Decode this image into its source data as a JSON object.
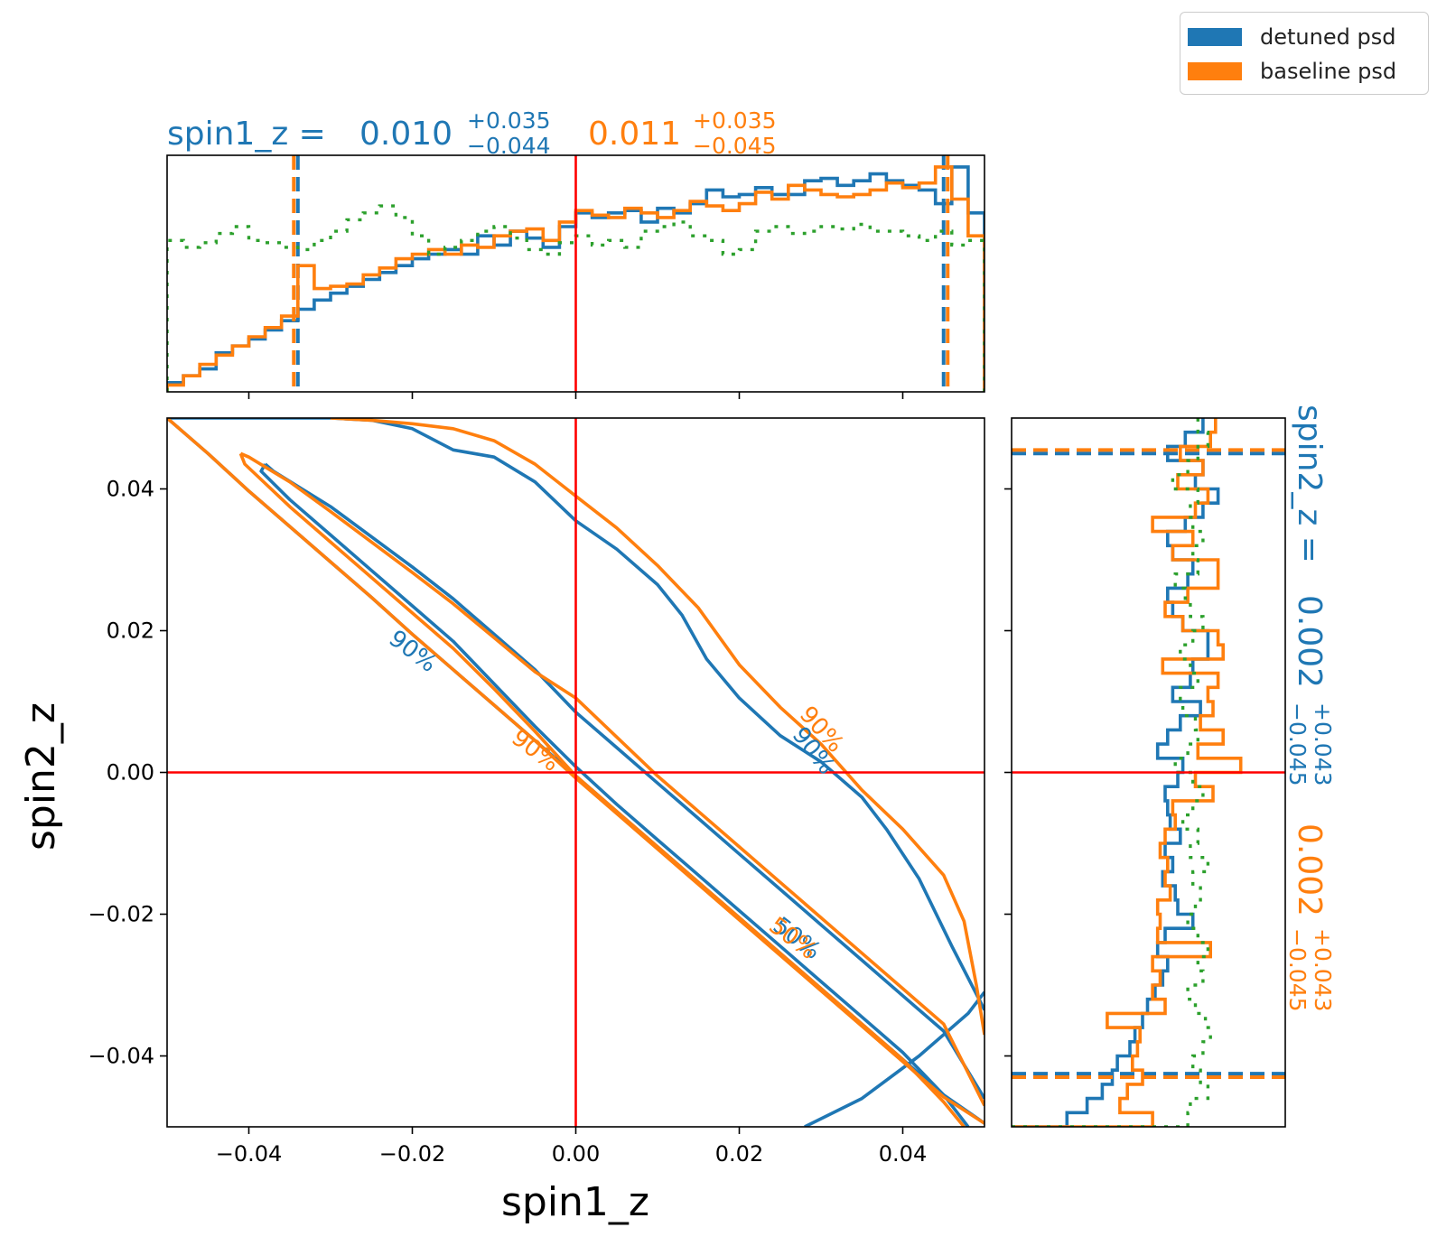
{
  "colors": {
    "series_a": "#1f77b4",
    "series_b": "#ff7f0e",
    "prior": "#2ca02c",
    "truth": "#ff0000"
  },
  "legend": {
    "items": [
      {
        "label": "detuned psd",
        "color": "#1f77b4"
      },
      {
        "label": "baseline psd",
        "color": "#ff7f0e"
      }
    ],
    "placement": "top-right"
  },
  "top_title": {
    "prefix": "spin1_z = ",
    "a_value": "0.010",
    "a_plus": "+0.035",
    "a_minus": "−0.044",
    "b_value": "0.011",
    "b_plus": "+0.035",
    "b_minus": "−0.045"
  },
  "right_title": {
    "prefix": "spin2_z = ",
    "a_value": "0.002",
    "a_plus": "+0.043",
    "a_minus": "−0.045",
    "b_value": "0.002",
    "b_plus": "+0.043",
    "b_minus": "−0.045"
  },
  "chart_data": {
    "type": "corner",
    "xlabel": "spin1_z",
    "ylabel": "spin2_z",
    "xlim": [
      -0.05,
      0.05
    ],
    "ylim": [
      -0.05,
      0.05
    ],
    "x_ticks": [
      "−0.04",
      "−0.02",
      "0.00",
      "0.02",
      "0.04"
    ],
    "x_tick_values": [
      -0.04,
      -0.02,
      0.0,
      0.02,
      0.04
    ],
    "y_ticks": [
      "0.04",
      "0.02",
      "0.00",
      "−0.02",
      "−0.04"
    ],
    "y_tick_values": [
      0.04,
      0.02,
      0.0,
      -0.02,
      -0.04
    ],
    "truth": {
      "x": 0.0,
      "y": 0.0
    },
    "contour_labels": [
      {
        "text": "90%",
        "series": "detuned psd",
        "x": -0.02,
        "y": 0.017,
        "angle": 37
      },
      {
        "text": "90%",
        "series": "detuned psd",
        "x": 0.029,
        "y": 0.003,
        "angle": 52
      },
      {
        "text": "50%",
        "series": "detuned psd",
        "x": 0.027,
        "y": -0.0235,
        "angle": 37
      },
      {
        "text": "90%",
        "series": "baseline psd",
        "x": 0.03,
        "y": 0.006,
        "angle": 48
      },
      {
        "text": "90%",
        "series": "baseline psd",
        "x": -0.005,
        "y": 0.003,
        "angle": 37
      },
      {
        "text": "50%",
        "series": "baseline psd",
        "x": 0.0265,
        "y": -0.0235,
        "angle": 37
      }
    ],
    "contours": [
      {
        "series": "detuned psd",
        "level": "90%",
        "points": [
          [
            -0.05,
            0.05
          ],
          [
            -0.045,
            0.045
          ],
          [
            -0.04,
            0.0397
          ],
          [
            -0.035,
            0.0347
          ],
          [
            -0.03,
            0.0297
          ],
          [
            -0.025,
            0.0247
          ],
          [
            -0.02,
            0.0195
          ],
          [
            -0.015,
            0.0145
          ],
          [
            -0.01,
            0.0095
          ],
          [
            -0.005,
            0.0045
          ],
          [
            0.0,
            -0.0005
          ],
          [
            0.005,
            -0.0055
          ],
          [
            0.01,
            -0.0105
          ],
          [
            0.015,
            -0.0155
          ],
          [
            0.02,
            -0.0205
          ],
          [
            0.025,
            -0.0255
          ],
          [
            0.03,
            -0.0305
          ],
          [
            0.035,
            -0.0355
          ],
          [
            0.04,
            -0.0405
          ],
          [
            0.045,
            -0.0455
          ],
          [
            0.05,
            -0.0495
          ]
        ]
      },
      {
        "series": "detuned psd",
        "level": "90%",
        "points": [
          [
            0.028,
            -0.05
          ],
          [
            0.035,
            -0.046
          ],
          [
            0.042,
            -0.04
          ],
          [
            0.048,
            -0.034
          ],
          [
            0.05,
            -0.031
          ]
        ]
      },
      {
        "series": "detuned psd",
        "level": "90%",
        "points": [
          [
            -0.05,
            0.05
          ],
          [
            -0.03,
            0.05
          ],
          [
            -0.025,
            0.0497
          ],
          [
            -0.02,
            0.0485
          ],
          [
            -0.015,
            0.0455
          ],
          [
            -0.01,
            0.0445
          ],
          [
            -0.005,
            0.041
          ],
          [
            0.0,
            0.0355
          ],
          [
            0.005,
            0.0315
          ],
          [
            0.01,
            0.0265
          ],
          [
            0.013,
            0.0222
          ],
          [
            0.016,
            0.016
          ],
          [
            0.02,
            0.0105
          ],
          [
            0.025,
            0.0052
          ],
          [
            0.03,
            0.0015
          ],
          [
            0.035,
            -0.0035
          ],
          [
            0.038,
            -0.008
          ],
          [
            0.042,
            -0.015
          ],
          [
            0.046,
            -0.0245
          ],
          [
            0.05,
            -0.0335
          ]
        ]
      },
      {
        "series": "detuned psd",
        "level": "50%",
        "points": [
          [
            -0.038,
            0.0435
          ],
          [
            -0.037,
            0.0425
          ],
          [
            -0.03,
            0.0375
          ],
          [
            -0.02,
            0.029
          ],
          [
            -0.015,
            0.0245
          ],
          [
            -0.01,
            0.0195
          ],
          [
            -0.005,
            0.0145
          ],
          [
            0.0,
            0.0085
          ],
          [
            0.005,
            0.0035
          ],
          [
            0.01,
            -0.0015
          ],
          [
            0.015,
            -0.0065
          ],
          [
            0.02,
            -0.0115
          ],
          [
            0.025,
            -0.0165
          ],
          [
            0.03,
            -0.0215
          ],
          [
            0.035,
            -0.0265
          ],
          [
            0.04,
            -0.0315
          ],
          [
            0.045,
            -0.0365
          ],
          [
            0.05,
            -0.046
          ]
        ]
      },
      {
        "series": "detuned psd",
        "level": "50%",
        "points": [
          [
            -0.038,
            0.0435
          ],
          [
            -0.0385,
            0.0425
          ],
          [
            -0.035,
            0.0385
          ],
          [
            -0.03,
            0.0335
          ],
          [
            -0.025,
            0.0285
          ],
          [
            -0.02,
            0.0235
          ],
          [
            -0.015,
            0.0185
          ],
          [
            -0.01,
            0.0125
          ],
          [
            -0.005,
            0.0065
          ],
          [
            0.0,
            0.0008
          ],
          [
            0.005,
            -0.0045
          ],
          [
            0.01,
            -0.0095
          ],
          [
            0.015,
            -0.0145
          ],
          [
            0.02,
            -0.0195
          ],
          [
            0.025,
            -0.0245
          ],
          [
            0.03,
            -0.0295
          ],
          [
            0.035,
            -0.0345
          ],
          [
            0.04,
            -0.0395
          ],
          [
            0.045,
            -0.0455
          ],
          [
            0.048,
            -0.05
          ]
        ]
      },
      {
        "series": "baseline psd",
        "level": "90%",
        "points": [
          [
            -0.05,
            0.05
          ],
          [
            -0.045,
            0.045
          ],
          [
            -0.04,
            0.0397
          ],
          [
            -0.035,
            0.0347
          ],
          [
            -0.03,
            0.0297
          ],
          [
            -0.025,
            0.0247
          ],
          [
            -0.02,
            0.0195
          ],
          [
            -0.015,
            0.0145
          ],
          [
            -0.01,
            0.0095
          ],
          [
            -0.005,
            0.0045
          ],
          [
            0.0,
            -0.0008
          ],
          [
            0.005,
            -0.0058
          ],
          [
            0.01,
            -0.0108
          ],
          [
            0.015,
            -0.0158
          ],
          [
            0.02,
            -0.0208
          ],
          [
            0.025,
            -0.0258
          ],
          [
            0.03,
            -0.0308
          ],
          [
            0.035,
            -0.0358
          ],
          [
            0.04,
            -0.0408
          ],
          [
            0.045,
            -0.0458
          ],
          [
            0.05,
            -0.0495
          ]
        ]
      },
      {
        "series": "baseline psd",
        "level": "90%",
        "points": [
          [
            -0.03,
            0.05
          ],
          [
            -0.025,
            0.0497
          ],
          [
            -0.02,
            0.0492
          ],
          [
            -0.015,
            0.0485
          ],
          [
            -0.01,
            0.0468
          ],
          [
            -0.005,
            0.0435
          ],
          [
            0.0,
            0.039
          ],
          [
            0.005,
            0.0345
          ],
          [
            0.01,
            0.0292
          ],
          [
            0.015,
            0.0232
          ],
          [
            0.02,
            0.0152
          ],
          [
            0.025,
            0.0092
          ],
          [
            0.03,
            0.004
          ],
          [
            0.035,
            -0.0025
          ],
          [
            0.04,
            -0.008
          ],
          [
            0.045,
            -0.0145
          ],
          [
            0.0475,
            -0.021
          ],
          [
            0.049,
            -0.03
          ],
          [
            0.05,
            -0.037
          ]
        ]
      },
      {
        "series": "baseline psd",
        "level": "50%",
        "points": [
          [
            -0.041,
            0.045
          ],
          [
            -0.04,
            0.0445
          ],
          [
            -0.035,
            0.041
          ],
          [
            -0.03,
            0.0368
          ],
          [
            -0.02,
            0.0282
          ],
          [
            -0.015,
            0.0238
          ],
          [
            -0.01,
            0.019
          ],
          [
            -0.005,
            0.0142
          ],
          [
            0.0,
            0.0105
          ],
          [
            0.005,
            0.005
          ],
          [
            0.01,
            -0.0005
          ],
          [
            0.015,
            -0.0055
          ],
          [
            0.02,
            -0.0105
          ],
          [
            0.025,
            -0.0155
          ],
          [
            0.03,
            -0.0205
          ],
          [
            0.035,
            -0.0255
          ],
          [
            0.04,
            -0.0305
          ],
          [
            0.045,
            -0.0355
          ],
          [
            0.05,
            -0.047
          ]
        ]
      },
      {
        "series": "baseline psd",
        "level": "50%",
        "points": [
          [
            -0.041,
            0.045
          ],
          [
            -0.0405,
            0.0435
          ],
          [
            -0.035,
            0.0375
          ],
          [
            -0.03,
            0.0325
          ],
          [
            -0.025,
            0.0275
          ],
          [
            -0.02,
            0.0225
          ],
          [
            -0.015,
            0.0175
          ],
          [
            -0.01,
            0.0118
          ],
          [
            -0.005,
            0.0058
          ],
          [
            0.0,
            -0.0005
          ],
          [
            0.005,
            -0.0055
          ],
          [
            0.01,
            -0.0105
          ],
          [
            0.015,
            -0.0155
          ],
          [
            0.02,
            -0.0205
          ],
          [
            0.025,
            -0.0255
          ],
          [
            0.03,
            -0.0305
          ],
          [
            0.035,
            -0.0355
          ],
          [
            0.04,
            -0.0405
          ],
          [
            0.045,
            -0.0465
          ],
          [
            0.0475,
            -0.05
          ]
        ]
      }
    ],
    "top_marginal": {
      "x_range": [
        -0.05,
        0.05
      ],
      "bin_width": 0.002,
      "bin_starts_at": -0.05,
      "series": [
        {
          "name": "detuned psd",
          "density": [
            0.04,
            0.07,
            0.1,
            0.17,
            0.2,
            0.23,
            0.27,
            0.31,
            0.36,
            0.4,
            0.43,
            0.46,
            0.49,
            0.52,
            0.55,
            0.58,
            0.6,
            0.62,
            0.6,
            0.68,
            0.64,
            0.7,
            0.67,
            0.63,
            0.72,
            0.78,
            0.76,
            0.78,
            0.79,
            0.74,
            0.8,
            0.78,
            0.82,
            0.88,
            0.85,
            0.86,
            0.89,
            0.86,
            0.86,
            0.92,
            0.93,
            0.9,
            0.92,
            0.95,
            0.92,
            0.9,
            0.88,
            0.82,
            0.98,
            0.78
          ],
          "ci_lo": -0.034,
          "ci_hi": 0.045
        },
        {
          "name": "baseline psd",
          "density": [
            0.03,
            0.07,
            0.12,
            0.16,
            0.2,
            0.24,
            0.28,
            0.33,
            0.55,
            0.45,
            0.46,
            0.47,
            0.51,
            0.54,
            0.58,
            0.6,
            0.62,
            0.6,
            0.64,
            0.63,
            0.68,
            0.7,
            0.71,
            0.66,
            0.74,
            0.79,
            0.77,
            0.76,
            0.8,
            0.78,
            0.76,
            0.79,
            0.83,
            0.81,
            0.79,
            0.82,
            0.87,
            0.84,
            0.9,
            0.88,
            0.86,
            0.85,
            0.86,
            0.88,
            0.91,
            0.89,
            0.91,
            0.98,
            0.84,
            0.68
          ],
          "ci_lo": -0.0345,
          "ci_hi": 0.0455
        },
        {
          "name": "prior",
          "density": [
            0.66,
            0.63,
            0.65,
            0.69,
            0.72,
            0.66,
            0.65,
            0.63,
            0.62,
            0.66,
            0.7,
            0.75,
            0.78,
            0.81,
            0.76,
            0.68,
            0.6,
            0.63,
            0.66,
            0.7,
            0.72,
            0.67,
            0.62,
            0.6,
            0.65,
            0.68,
            0.64,
            0.66,
            0.63,
            0.7,
            0.72,
            0.74,
            0.68,
            0.66,
            0.6,
            0.62,
            0.7,
            0.72,
            0.69,
            0.7,
            0.72,
            0.71,
            0.73,
            0.7,
            0.7,
            0.68,
            0.66,
            0.7,
            0.64,
            0.66
          ]
        }
      ],
      "truth": 0.0
    },
    "right_marginal": {
      "y_range": [
        -0.05,
        0.05
      ],
      "bin_width": 0.002,
      "bin_starts_at": -0.05,
      "series": [
        {
          "name": "detuned psd",
          "density": [
            0.22,
            0.3,
            0.36,
            0.4,
            0.42,
            0.47,
            0.49,
            0.52,
            0.54,
            0.57,
            0.6,
            0.62,
            0.58,
            0.61,
            0.72,
            0.66,
            0.65,
            0.6,
            0.64,
            0.61,
            0.67,
            0.63,
            0.62,
            0.61,
            0.66,
            0.68,
            0.58,
            0.62,
            0.67,
            0.75,
            0.64,
            0.71,
            0.72,
            0.78,
            0.78,
            0.68,
            0.64,
            0.62,
            0.7,
            0.72,
            0.64,
            0.62,
            0.69,
            0.76,
            0.82,
            0.73,
            0.76,
            0.62,
            0.69,
            0.76
          ],
          "ci_lo": -0.0425,
          "ci_hi": 0.045
        },
        {
          "name": "baseline psd",
          "density": [
            0.56,
            0.43,
            0.46,
            0.52,
            0.48,
            0.5,
            0.51,
            0.38,
            0.61,
            0.56,
            0.59,
            0.56,
            0.79,
            0.58,
            0.59,
            0.58,
            0.63,
            0.61,
            0.62,
            0.59,
            0.61,
            0.65,
            0.64,
            0.8,
            0.73,
            0.91,
            0.74,
            0.84,
            0.75,
            0.8,
            0.78,
            0.82,
            0.6,
            0.84,
            0.82,
            0.68,
            0.61,
            0.7,
            0.82,
            0.82,
            0.64,
            0.72,
            0.56,
            0.73,
            0.78,
            0.66,
            0.76,
            0.67,
            0.79,
            0.81
          ],
          "ci_lo": -0.043,
          "ci_hi": 0.0455
        },
        {
          "name": "prior",
          "density": [
            0.7,
            0.71,
            0.78,
            0.75,
            0.72,
            0.76,
            0.79,
            0.77,
            0.73,
            0.7,
            0.76,
            0.74,
            0.78,
            0.74,
            0.7,
            0.73,
            0.75,
            0.72,
            0.78,
            0.71,
            0.74,
            0.68,
            0.72,
            0.76,
            0.72,
            0.65,
            0.7,
            0.74,
            0.73,
            0.68,
            0.67,
            0.74,
            0.71,
            0.67,
            0.72,
            0.76,
            0.71,
            0.69,
            0.65,
            0.74,
            0.72,
            0.76,
            0.72,
            0.71,
            0.74,
            0.64,
            0.7,
            0.74,
            0.78,
            0.74
          ]
        }
      ],
      "truth": 0.0
    }
  }
}
